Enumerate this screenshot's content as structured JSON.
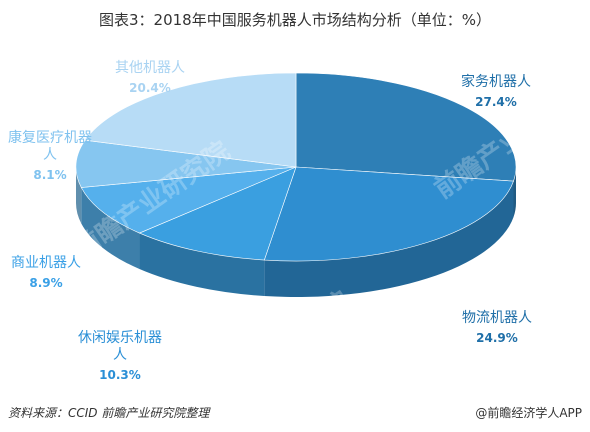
{
  "title": "图表3：2018年中国服务机器人市场结构分析（单位：%）",
  "source": "资料来源：CCID 前瞻产业研究院整理",
  "brand": "@前瞻经济学人APP",
  "watermark": "前瞻产业研究院",
  "chart_data": {
    "type": "pie",
    "title": "图表3：2018年中国服务机器人市场结构分析（单位：%）",
    "slices": [
      {
        "label": "家务机器人",
        "value": 27.4,
        "value_label": "27.4%",
        "color": "#2e7fb6"
      },
      {
        "label": "物流机器人",
        "value": 24.9,
        "value_label": "24.9%",
        "color": "#2f8ed0"
      },
      {
        "label": "休闲娱乐机器人",
        "value": 10.3,
        "value_label": "10.3%",
        "color": "#3a9fe0"
      },
      {
        "label": "商业机器人",
        "value": 8.9,
        "value_label": "8.9%",
        "color": "#55b0ec"
      },
      {
        "label": "康复医疗机器人",
        "value": 8.1,
        "value_label": "8.1%",
        "color": "#86c6f0"
      },
      {
        "label": "其他机器人",
        "value": 20.4,
        "value_label": "20.4%",
        "color": "#b7dcf6"
      }
    ]
  }
}
